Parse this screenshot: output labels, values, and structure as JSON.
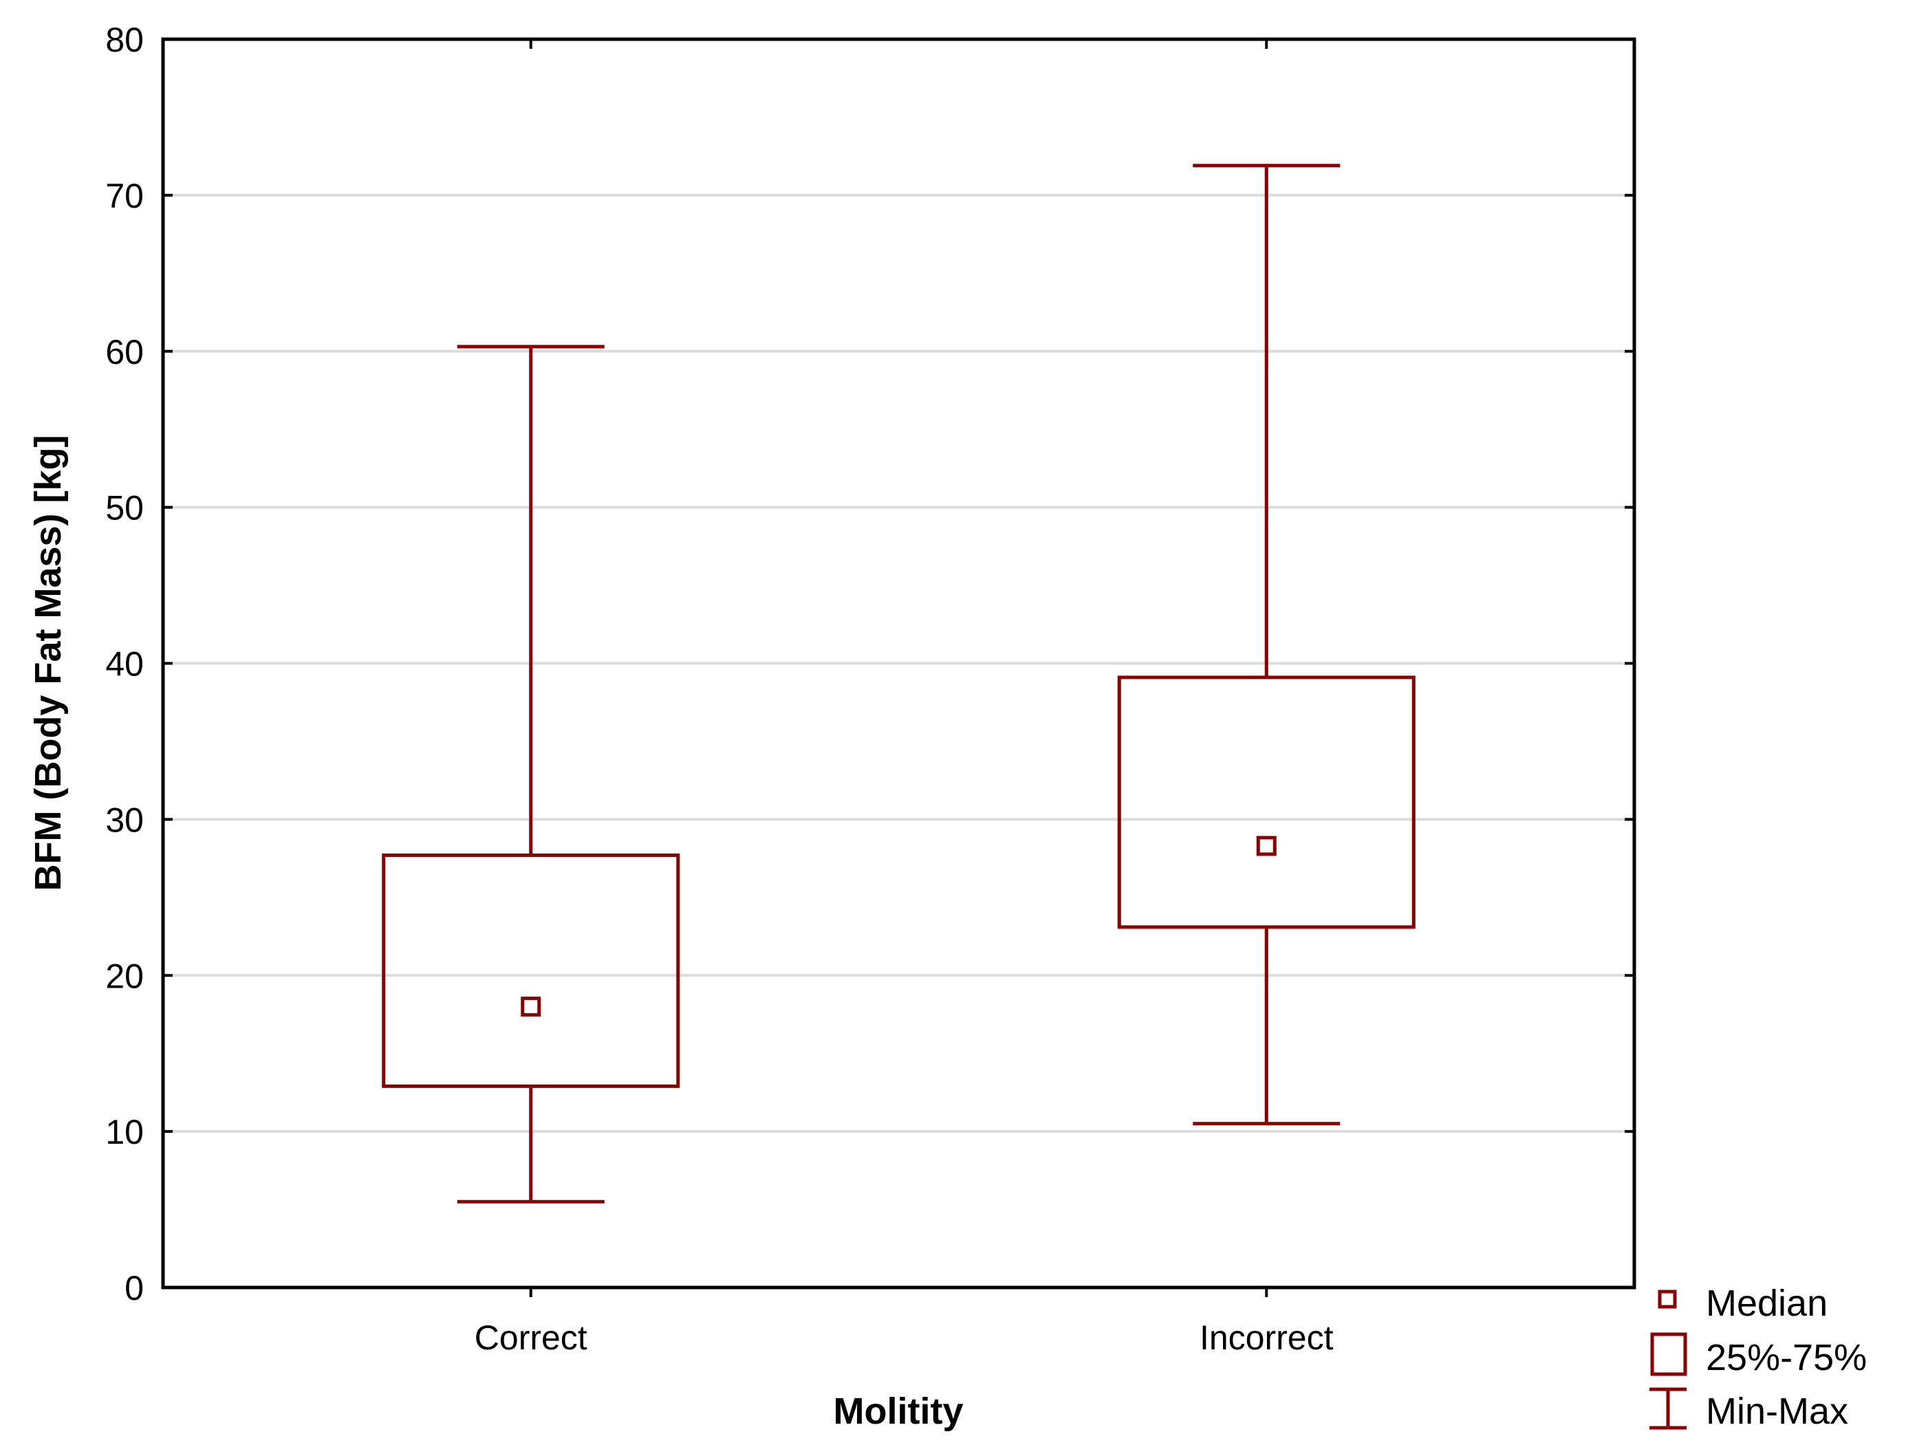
{
  "chart_data": {
    "type": "box",
    "xlabel": "Molitity",
    "ylabel": "BFM (Body Fat Mass) [kg]",
    "ylim": [
      0,
      80
    ],
    "yticks": [
      0,
      10,
      20,
      30,
      40,
      50,
      60,
      70,
      80
    ],
    "grid": true,
    "categories": [
      "Correct",
      "Incorrect"
    ],
    "boxes": [
      {
        "category": "Correct",
        "min": 5.5,
        "q1": 12.9,
        "median": 18.0,
        "q3": 27.7,
        "max": 60.3
      },
      {
        "category": "Incorrect",
        "min": 10.5,
        "q1": 23.1,
        "median": 28.3,
        "q3": 39.1,
        "max": 71.9
      }
    ],
    "legend": {
      "position": "bottom-right",
      "entries": [
        "Median",
        "25%-75%",
        "Min-Max"
      ]
    },
    "colors": {
      "series": "#8b0000",
      "grid": "#dcdcdc",
      "axis": "#000000"
    }
  }
}
